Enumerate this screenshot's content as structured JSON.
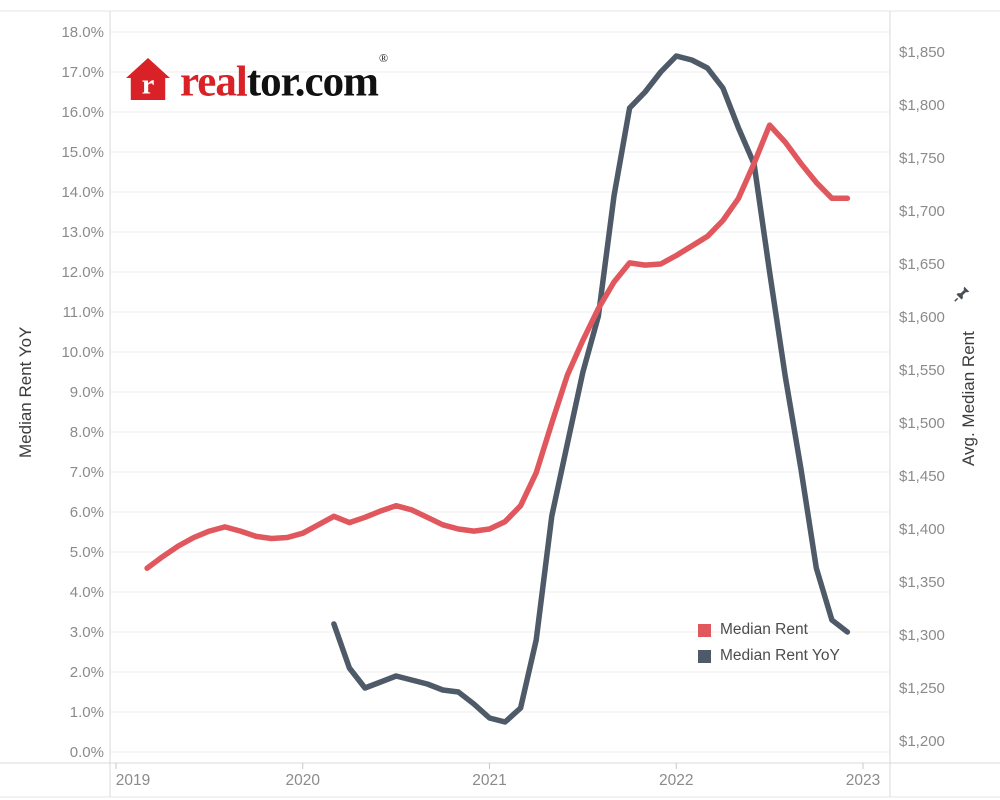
{
  "logo": {
    "house_letter": "r",
    "brand_red_text": "real",
    "brand_dark_text": "tor.com",
    "registered_mark": "®",
    "house_color": "#d92228"
  },
  "chart_data": {
    "type": "line",
    "title": "",
    "interval": "monthly",
    "colors": {
      "gridline": "#ececec",
      "axis_rule": "#d9d9d9",
      "tick_mark": "#c9c9c9",
      "tick_label": "#8b8b8b",
      "axis_title": "#3c3c3c"
    },
    "left_axis": {
      "title": "Median Rent YoY",
      "min": 0,
      "max": 18,
      "tick_step": 1,
      "tick_labels": [
        "18.0%",
        "17.0%",
        "16.0%",
        "15.0%",
        "14.0%",
        "13.0%",
        "12.0%",
        "11.0%",
        "10.0%",
        "9.0%",
        "8.0%",
        "7.0%",
        "6.0%",
        "5.0%",
        "4.0%",
        "3.0%",
        "2.0%",
        "1.0%",
        "0.0%"
      ]
    },
    "right_axis": {
      "title": "Avg. Median Rent",
      "min": 1200,
      "max": 1850,
      "tick_step": 50,
      "tick_labels": [
        "$1,850",
        "$1,800",
        "$1,750",
        "$1,700",
        "$1,650",
        "$1,600",
        "$1,550",
        "$1,500",
        "$1,450",
        "$1,400",
        "$1,350",
        "$1,300",
        "$1,250",
        "$1,200"
      ]
    },
    "x_axis": {
      "tick_labels": [
        "2019",
        "2020",
        "2021",
        "2022",
        "2023"
      ],
      "range": [
        "2019-01",
        "2023-01"
      ]
    },
    "series": [
      {
        "name": "Median Rent",
        "axis": "right",
        "color": "#e0585e",
        "start": "2019-03",
        "end": "2022-12",
        "values": [
          1363,
          1374,
          1384,
          1392,
          1398,
          1402,
          1398,
          1393,
          1391,
          1392,
          1396,
          1404,
          1412,
          1406,
          1411,
          1417,
          1422,
          1418,
          1411,
          1404,
          1400,
          1398,
          1400,
          1407,
          1422,
          1453,
          1500,
          1545,
          1578,
          1608,
          1633,
          1651,
          1649,
          1650,
          1658,
          1667,
          1676,
          1691,
          1712,
          1745,
          1781,
          1765,
          1745,
          1727,
          1712,
          1712
        ]
      },
      {
        "name": "Median Rent YoY",
        "axis": "left",
        "color": "#4e5a67",
        "start": "2020-03",
        "end": "2022-12",
        "values": [
          3.2,
          2.1,
          1.6,
          1.75,
          1.9,
          1.8,
          1.7,
          1.55,
          1.5,
          1.2,
          0.85,
          0.75,
          1.1,
          2.8,
          5.9,
          7.7,
          9.5,
          10.9,
          13.9,
          16.1,
          16.5,
          17.0,
          17.4,
          17.3,
          17.1,
          16.6,
          15.6,
          14.7,
          12.0,
          9.4,
          7.1,
          4.6,
          3.3,
          3.0
        ]
      }
    ],
    "legend": {
      "position": "inside-bottom-right",
      "entries": [
        {
          "label": "Median Rent",
          "color": "#e0585e"
        },
        {
          "label": "Median Rent YoY",
          "color": "#4e5a67"
        }
      ]
    }
  }
}
